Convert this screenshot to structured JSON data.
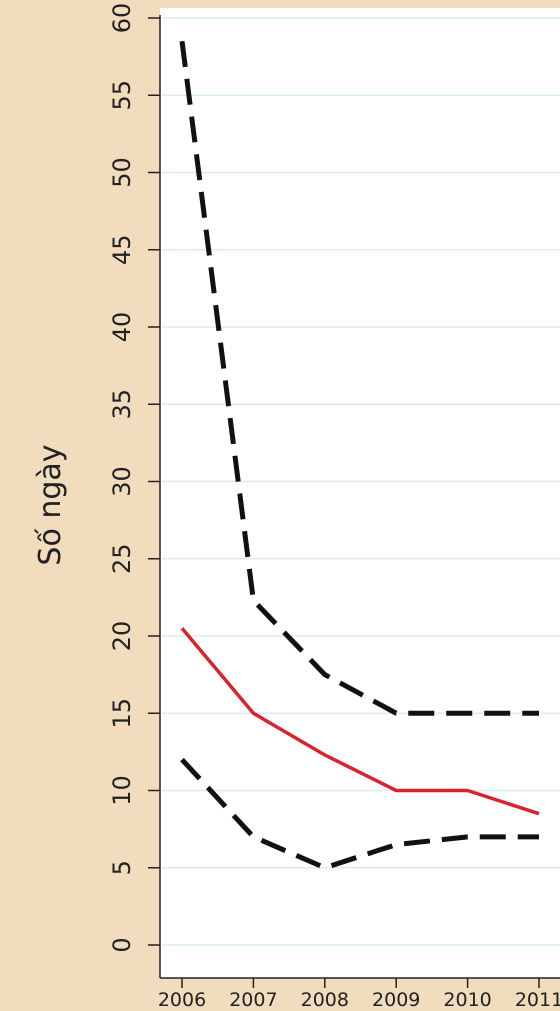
{
  "chart_data": {
    "type": "line",
    "ylabel": "Số ngày",
    "xlabel": "",
    "x": [
      "2006",
      "2007",
      "2008",
      "2009",
      "2010",
      "2011"
    ],
    "y_ticks": [
      "0",
      "5",
      "10",
      "15",
      "20",
      "25",
      "30",
      "35",
      "40",
      "45",
      "50",
      "55",
      "60"
    ],
    "ylim": [
      0,
      60
    ],
    "grid": true,
    "series": [
      {
        "style": "dashed",
        "color": "#111111",
        "values": [
          58.5,
          22.3,
          17.5,
          15,
          15,
          15
        ]
      },
      {
        "style": "solid",
        "color": "#d9242b",
        "values": [
          20.5,
          15,
          12.3,
          10,
          10,
          8.5
        ]
      },
      {
        "style": "dashed",
        "color": "#111111",
        "values": [
          12,
          7,
          5,
          6.5,
          7,
          7
        ]
      }
    ]
  },
  "colors": {
    "page_background": "#f1dcbd",
    "plot_background": "#ffffff",
    "gridline": "#d8ecf7",
    "axis": "#222222"
  }
}
